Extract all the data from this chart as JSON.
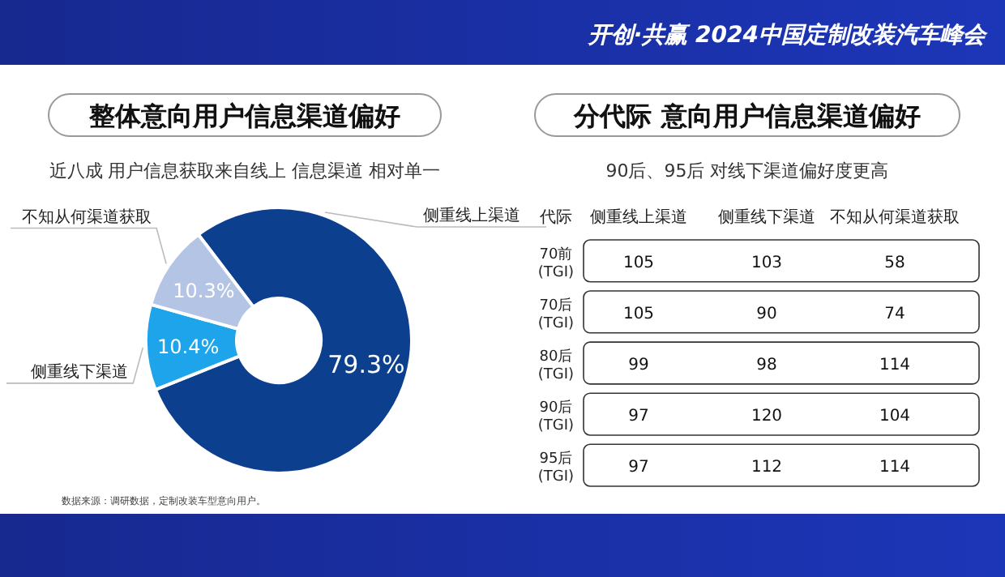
{
  "chart_data": [
    {
      "type": "donut",
      "title": "整体意向用户信息渠道偏好",
      "subtitle": "近八成 用户信息获取来自线上  信息渠道 相对单一",
      "categories": [
        "侧重线上渠道",
        "侧重线下渠道",
        "不知从何渠道获取"
      ],
      "values": [
        79.3,
        10.4,
        10.3
      ],
      "colors": [
        "#0d3f8f",
        "#1ea4ea",
        "#b4c4e4"
      ],
      "value_labels": [
        "79.3%",
        "10.4%",
        "10.3%"
      ],
      "annotations": [
        "开创·共赢 2024中国定制改装汽车峰会",
        "数据来源：调研数据，定制改装车型意向用户。"
      ]
    },
    {
      "type": "heatmap",
      "title": "分代际 意向用户信息渠道偏好",
      "subtitle": "90后、95后 对线下渠道偏好度更高",
      "ylabel": "代际",
      "categories": [
        "侧重线上渠道",
        "侧重线下渠道",
        "不知从何渠道获取"
      ],
      "y_categories": [
        "70前 (TGI)",
        "70后 (TGI)",
        "80后 (TGI)",
        "90后 (TGI)",
        "95后 (TGI)"
      ],
      "cells": [
        [
          105,
          103,
          58
        ],
        [
          105,
          90,
          74
        ],
        [
          99,
          98,
          114
        ],
        [
          97,
          120,
          104
        ],
        [
          97,
          112,
          114
        ]
      ],
      "data_labels": true
    }
  ]
}
